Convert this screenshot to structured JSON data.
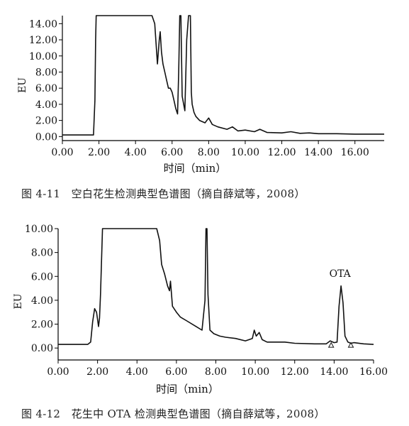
{
  "figures": [
    {
      "caption": "图 4-11　空白花生检测典型色谱图（摘自薛斌等，2008）"
    },
    {
      "caption": "图 4-12　花生中 OTA 检测典型色谱图（摘自薛斌等，2008）"
    }
  ],
  "chart_data": [
    {
      "type": "line",
      "title": "",
      "xlabel": "时间（min）",
      "ylabel": "EU",
      "xlim": [
        0,
        17.6
      ],
      "ylim": [
        -0.5,
        15
      ],
      "xticks": [
        "0.00",
        "2.00",
        "4.00",
        "6.00",
        "8.00",
        "10.00",
        "12.00",
        "14.00",
        "16.00"
      ],
      "yticks": [
        "0.00",
        "2.00",
        "4.00",
        "6.00",
        "8.00",
        "10.00",
        "12.00",
        "14.00"
      ],
      "grid": false,
      "series": [
        {
          "name": "",
          "x": [
            0,
            1.5,
            1.7,
            1.78,
            1.82,
            1.85,
            1.88,
            2.0,
            2.5,
            3.5,
            4.5,
            4.9,
            5.05,
            5.2,
            5.3,
            5.35,
            5.42,
            5.5,
            5.6,
            5.7,
            5.8,
            5.9,
            6.0,
            6.1,
            6.2,
            6.3,
            6.36,
            6.42,
            6.48,
            6.55,
            6.7,
            6.8,
            6.9,
            7.0,
            7.05,
            7.1,
            7.2,
            7.3,
            7.5,
            7.8,
            8.0,
            8.2,
            8.5,
            9.0,
            9.3,
            9.6,
            10.0,
            10.5,
            10.8,
            11.2,
            12.0,
            12.5,
            13.0,
            13.5,
            14.0,
            15.0,
            16.0,
            17.0,
            17.6
          ],
          "y": [
            0.2,
            0.2,
            0.2,
            4.5,
            12,
            16,
            16,
            16,
            16,
            16,
            16,
            16,
            14,
            9,
            12,
            13,
            10.5,
            9,
            8,
            7,
            6,
            6,
            5.5,
            4.5,
            3.5,
            2.8,
            8,
            16,
            16,
            5,
            3.2,
            12,
            16,
            16,
            5.5,
            4,
            3,
            2.5,
            2.0,
            1.7,
            2.3,
            1.5,
            1.2,
            0.9,
            1.2,
            0.7,
            0.8,
            0.6,
            0.9,
            0.5,
            0.45,
            0.6,
            0.4,
            0.45,
            0.35,
            0.35,
            0.3,
            0.3,
            0.3
          ]
        }
      ]
    },
    {
      "type": "line",
      "title": "",
      "xlabel": "时间（min）",
      "ylabel": "EU",
      "xlim": [
        0,
        16
      ],
      "ylim": [
        -1.0,
        10
      ],
      "xticks": [
        "0.00",
        "2.00",
        "4.00",
        "6.00",
        "8.00",
        "10.00",
        "12.00",
        "14.00",
        "16.00"
      ],
      "yticks": [
        "0.00",
        "2.00",
        "4.00",
        "6.00",
        "8.00",
        "10.00"
      ],
      "grid": false,
      "annotations": [
        {
          "text": "OTA",
          "x": 14.3,
          "y": 5.6
        }
      ],
      "series": [
        {
          "name": "",
          "x": [
            0,
            1.5,
            1.65,
            1.75,
            1.85,
            1.95,
            2.05,
            2.1,
            2.15,
            2.25,
            2.35,
            2.45,
            3.0,
            4.5,
            5.0,
            5.15,
            5.25,
            5.4,
            5.55,
            5.65,
            5.7,
            5.8,
            6.0,
            6.2,
            6.5,
            7.0,
            7.3,
            7.45,
            7.5,
            7.55,
            7.6,
            7.7,
            7.9,
            8.2,
            8.5,
            9.0,
            9.5,
            9.85,
            9.95,
            10.05,
            10.2,
            10.35,
            10.6,
            11.0,
            11.5,
            12.0,
            13.0,
            13.6,
            13.8,
            14.0,
            14.15,
            14.25,
            14.35,
            14.45,
            14.55,
            14.7,
            14.85,
            15.0,
            15.5,
            16.0
          ],
          "y": [
            0.3,
            0.3,
            0.5,
            2.2,
            3.3,
            3.0,
            1.8,
            2.5,
            4.5,
            10.5,
            10.5,
            10.5,
            10.5,
            10.5,
            10.5,
            9.0,
            7.0,
            6.2,
            5.2,
            4.8,
            5.6,
            3.5,
            3.0,
            2.6,
            2.3,
            1.8,
            1.5,
            4.0,
            10.0,
            10.0,
            4.5,
            1.5,
            1.2,
            1.0,
            0.9,
            0.8,
            0.6,
            0.8,
            1.5,
            1.0,
            1.3,
            0.7,
            0.5,
            0.5,
            0.5,
            0.4,
            0.35,
            0.35,
            0.6,
            0.45,
            0.5,
            3.5,
            5.2,
            3.8,
            1.0,
            0.5,
            0.4,
            0.45,
            0.35,
            0.3
          ]
        }
      ]
    }
  ]
}
